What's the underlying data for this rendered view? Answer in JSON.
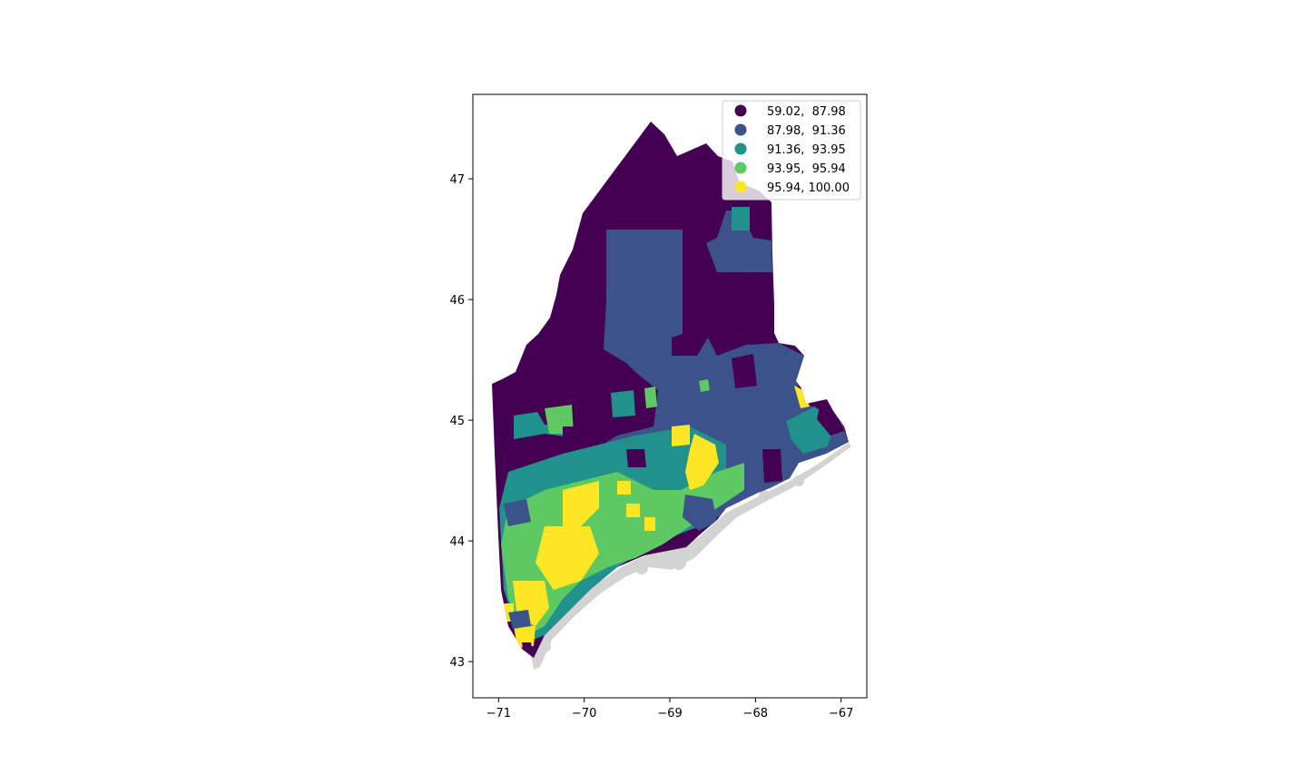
{
  "chart_data": {
    "type": "choropleth",
    "title": "",
    "xlabel": "",
    "ylabel": "",
    "xlim": [
      -71.3,
      -66.7
    ],
    "ylim": [
      42.7,
      47.7
    ],
    "x_ticks": [
      -71,
      -70,
      -69,
      -68,
      -67
    ],
    "y_ticks": [
      43,
      44,
      45,
      46,
      47
    ],
    "x_tick_labels": [
      "−71",
      "−70",
      "−69",
      "−68",
      "−67"
    ],
    "y_tick_labels": [
      "43",
      "44",
      "45",
      "46",
      "47"
    ],
    "colormap": "viridis",
    "legend_position": "top-right",
    "classes": [
      {
        "label": "59.02,  87.98",
        "color": "#440154"
      },
      {
        "label": "87.98,  91.36",
        "color": "#3b528b"
      },
      {
        "label": "91.36,  93.95",
        "color": "#21918c"
      },
      {
        "label": "93.95,  95.94",
        "color": "#5ec962"
      },
      {
        "label": "95.94, 100.00",
        "color": "#fde725"
      }
    ],
    "background_color": "#d3d3d3"
  }
}
